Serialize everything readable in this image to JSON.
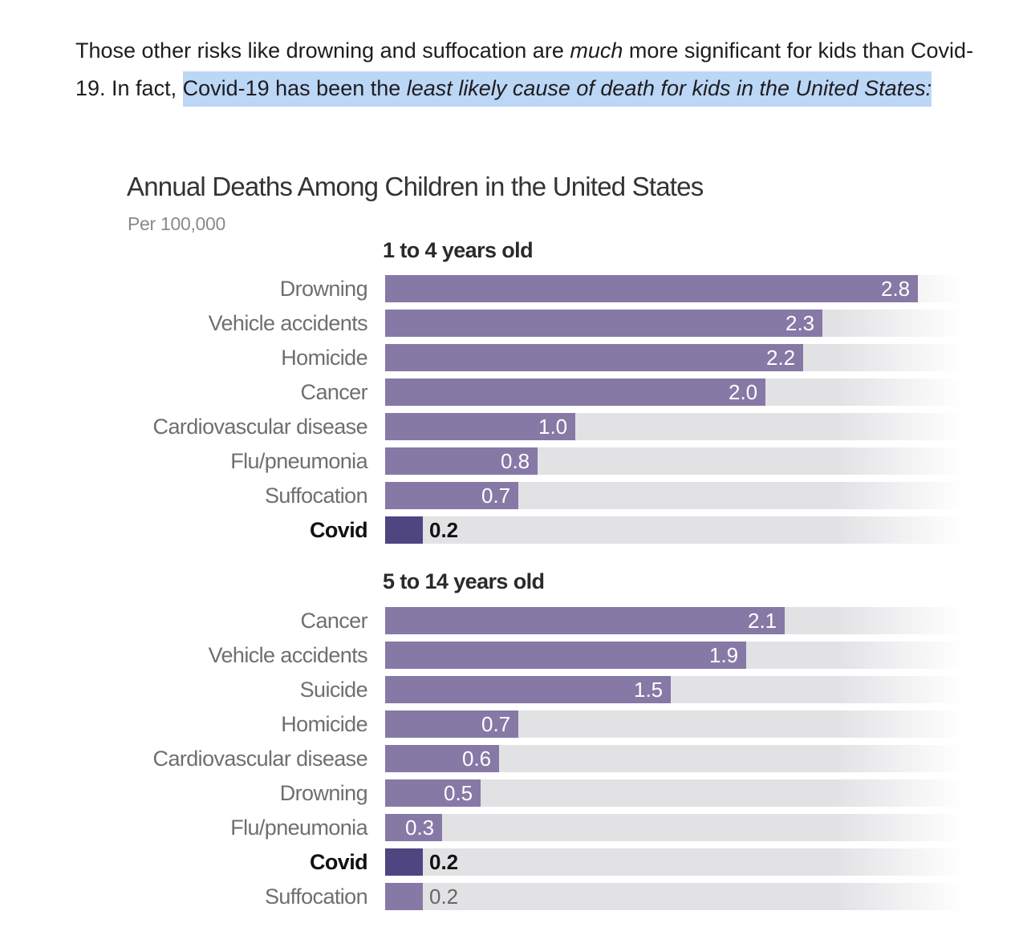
{
  "article": {
    "line_parts": [
      {
        "text": "Those other risks like drowning and suffocation are ",
        "italic": false,
        "highlight": false
      },
      {
        "text": "much",
        "italic": true,
        "highlight": false
      },
      {
        "text": " more significant for kids than Covid-19. In fact, ",
        "italic": false,
        "highlight": false
      },
      {
        "text": "Covid-19 has been the ",
        "italic": false,
        "highlight": true
      },
      {
        "text": "least likely cause of death for kids in the United States:",
        "italic": true,
        "highlight": true
      }
    ]
  },
  "colors": {
    "bar": "#8679a6",
    "highlight_bar": "#4f4580",
    "track": "#e2e2e5",
    "text_highlight": "#bcd6f6"
  },
  "chart_data": [
    {
      "type": "bar",
      "orientation": "horizontal",
      "title": "Annual Deaths Among Children in the United States",
      "subtitle": "Per 100,000",
      "group_title": "1 to 4 years old",
      "xlim": [
        0,
        3.0
      ],
      "grid": false,
      "highlight_category": "Covid",
      "categories": [
        "Drowning",
        "Vehicle accidents",
        "Homicide",
        "Cancer",
        "Cardiovascular disease",
        "Flu/pneumonia",
        "Suffocation",
        "Covid"
      ],
      "values": [
        2.8,
        2.3,
        2.2,
        2.0,
        1.0,
        0.8,
        0.7,
        0.2
      ],
      "value_labels": [
        "2.8",
        "2.3",
        "2.2",
        "2.0",
        "1.0",
        "0.8",
        "0.7",
        "0.2"
      ]
    },
    {
      "type": "bar",
      "orientation": "horizontal",
      "title": "Annual Deaths Among Children in the United States",
      "subtitle": "Per 100,000",
      "group_title": "5 to 14 years old",
      "xlim": [
        0,
        3.0
      ],
      "grid": false,
      "highlight_category": "Covid",
      "categories": [
        "Cancer",
        "Vehicle accidents",
        "Suicide",
        "Homicide",
        "Cardiovascular disease",
        "Drowning",
        "Flu/pneumonia",
        "Covid",
        "Suffocation"
      ],
      "values": [
        2.1,
        1.9,
        1.5,
        0.7,
        0.6,
        0.5,
        0.3,
        0.2,
        0.2
      ],
      "value_labels": [
        "2.1",
        "1.9",
        "1.5",
        "0.7",
        "0.6",
        "0.5",
        "0.3",
        "0.2",
        "0.2"
      ]
    }
  ]
}
